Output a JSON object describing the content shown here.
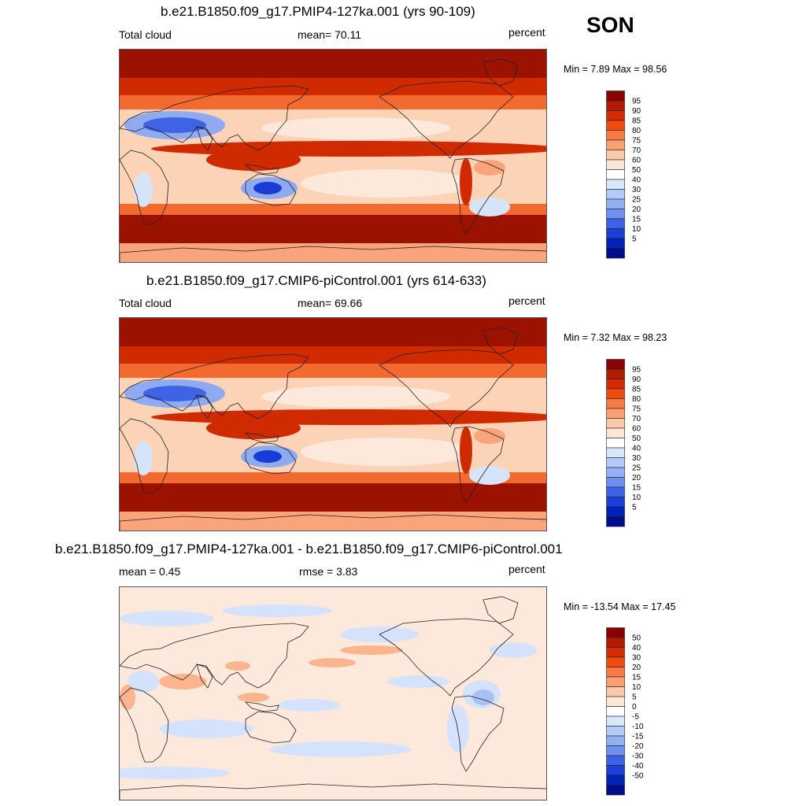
{
  "season": "SON",
  "panels": [
    {
      "title": "b.e21.B1850.f09_g17.PMIP4-127ka.001 (yrs 90-109)",
      "left_label": "Total cloud",
      "center_label": "mean=  70.11",
      "right_label": "percent",
      "minmax": "Min =   7.89 Max =  98.56",
      "colorbar": {
        "labels": [
          "95",
          "90",
          "85",
          "80",
          "75",
          "70",
          "60",
          "50",
          "40",
          "30",
          "25",
          "20",
          "15",
          "10",
          "5"
        ],
        "colors": [
          "#8b0000",
          "#b01c00",
          "#d62a00",
          "#f04c10",
          "#f77a45",
          "#fba070",
          "#fcc9a8",
          "#fde6d4",
          "#ffffff",
          "#d8e8fb",
          "#b3cbf8",
          "#93b0f5",
          "#6e90ef",
          "#3c62e8",
          "#1d3fd9",
          "#0022b8",
          "#000c8c"
        ]
      }
    },
    {
      "title": "b.e21.B1850.f09_g17.CMIP6-piControl.001 (yrs 614-633)",
      "left_label": "Total cloud",
      "center_label": "mean=  69.66",
      "right_label": "percent",
      "minmax": "Min =   7.32 Max =  98.23",
      "colorbar": {
        "labels": [
          "95",
          "90",
          "85",
          "80",
          "75",
          "70",
          "60",
          "50",
          "40",
          "30",
          "25",
          "20",
          "15",
          "10",
          "5"
        ],
        "colors": [
          "#8b0000",
          "#b01c00",
          "#d62a00",
          "#f04c10",
          "#f77a45",
          "#fba070",
          "#fcc9a8",
          "#fde6d4",
          "#ffffff",
          "#d8e8fb",
          "#b3cbf8",
          "#93b0f5",
          "#6e90ef",
          "#3c62e8",
          "#1d3fd9",
          "#0022b8",
          "#000c8c"
        ]
      }
    },
    {
      "title": "b.e21.B1850.f09_g17.PMIP4-127ka.001 - b.e21.B1850.f09_g17.CMIP6-piControl.001",
      "left_label": "mean =   0.45",
      "center_label": "rmse =   3.83",
      "right_label": "percent",
      "minmax": "Min = -13.54 Max =  17.45",
      "colorbar": {
        "labels": [
          "50",
          "40",
          "30",
          "20",
          "15",
          "10",
          "5",
          "0",
          "-5",
          "-10",
          "-15",
          "-20",
          "-30",
          "-40",
          "-50"
        ],
        "colors": [
          "#8b0000",
          "#b01c00",
          "#d62a00",
          "#f04c10",
          "#f77a45",
          "#fba070",
          "#fcc9a8",
          "#fde6d4",
          "#ffffff",
          "#d8e8fb",
          "#b3cbf8",
          "#93b0f5",
          "#6e90ef",
          "#3c62e8",
          "#1d3fd9",
          "#0022b8",
          "#000c8c"
        ]
      }
    }
  ],
  "map_colors": {
    "dark_red": "#9c1200",
    "red": "#d02a00",
    "orange": "#f26a30",
    "salmon": "#f9a47a",
    "peach": "#fdd3b8",
    "cream": "#fde9dc",
    "light_blue": "#d6e4fa",
    "mid_blue": "#8eabf2",
    "blue": "#3f63e4",
    "deep_blue": "#1a3cd6",
    "diff_base": "#fde9dc",
    "diff_blue": "#d4e2fb",
    "diff_blue2": "#a9c0f5",
    "diff_orange": "#fbb48e"
  }
}
